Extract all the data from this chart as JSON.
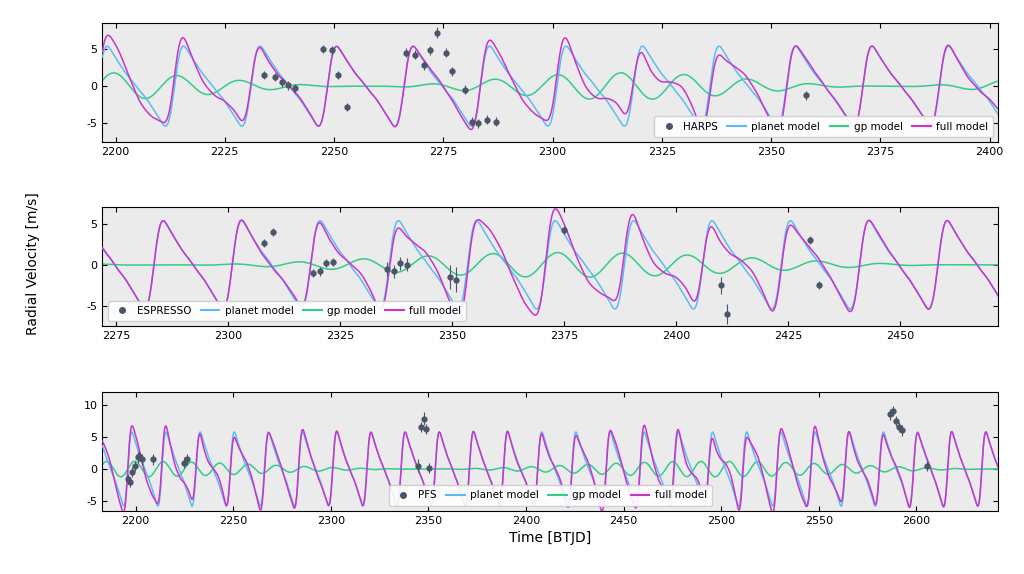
{
  "panel1": {
    "instrument": "HARPS",
    "xmin": 2197,
    "xmax": 2402,
    "ylim": [
      -7.5,
      8.5
    ],
    "yticks": [
      -5,
      0,
      5
    ],
    "xticks": [
      2200,
      2225,
      2250,
      2275,
      2300,
      2325,
      2350,
      2375,
      2400
    ],
    "data_x": [
      2234.0,
      2236.5,
      2238.0,
      2239.5,
      2241.0,
      2247.5,
      2249.5,
      2251.0,
      2253.0,
      2266.5,
      2268.5,
      2270.5,
      2272.0,
      2273.5,
      2275.5,
      2277.0,
      2280.0,
      2281.5,
      2283.0,
      2285.0,
      2287.0,
      2358.0
    ],
    "data_y": [
      1.5,
      1.2,
      0.5,
      0.1,
      -0.3,
      5.0,
      4.8,
      1.5,
      -2.8,
      4.5,
      4.2,
      2.8,
      4.8,
      7.2,
      4.5,
      2.0,
      -0.5,
      -4.8,
      -5.0,
      -4.5,
      -4.8,
      -1.2
    ],
    "data_yerr": [
      0.55,
      0.55,
      0.55,
      0.55,
      0.55,
      0.6,
      0.6,
      0.6,
      0.6,
      0.6,
      0.6,
      0.6,
      0.6,
      0.75,
      0.6,
      0.6,
      0.6,
      0.6,
      0.6,
      0.6,
      0.6,
      0.6
    ],
    "planet_amp": 4.2,
    "gp_amp": 1.8,
    "gp_slow_period": 120.0,
    "legend_loc": "lower right"
  },
  "panel2": {
    "instrument": "ESPRESSO",
    "xmin": 2272,
    "xmax": 2472,
    "ylim": [
      -7.5,
      7.0
    ],
    "yticks": [
      -5,
      0,
      5
    ],
    "xticks": [
      2275,
      2300,
      2325,
      2350,
      2375,
      2400,
      2425,
      2450
    ],
    "data_x": [
      2308.0,
      2310.0,
      2319.0,
      2320.5,
      2322.0,
      2323.5,
      2335.5,
      2337.0,
      2338.5,
      2340.0,
      2349.5,
      2351.0,
      2375.0,
      2410.0,
      2411.5,
      2430.0,
      2432.0
    ],
    "data_y": [
      2.7,
      4.0,
      -1.0,
      -0.8,
      0.2,
      0.3,
      -0.5,
      -0.8,
      0.2,
      0.0,
      -1.5,
      -1.8,
      4.2,
      -2.5,
      -6.0,
      3.0,
      -2.5
    ],
    "data_yerr": [
      0.5,
      0.5,
      0.5,
      0.5,
      0.5,
      0.5,
      0.8,
      0.8,
      0.8,
      0.8,
      1.5,
      1.5,
      0.5,
      1.0,
      1.2,
      0.5,
      0.5
    ],
    "planet_amp": 4.2,
    "gp_amp": 1.5,
    "gp_slow_period": 180.0,
    "legend_loc": "lower left"
  },
  "panel3": {
    "instrument": "PFS",
    "xmin": 2183,
    "xmax": 2642,
    "ylim": [
      -6.5,
      12.0
    ],
    "yticks": [
      -5,
      0,
      5,
      10
    ],
    "xticks": [
      2200,
      2250,
      2300,
      2350,
      2400,
      2450,
      2500,
      2550,
      2600
    ],
    "data_x": [
      2196.0,
      2197.0,
      2198.0,
      2199.5,
      2201.0,
      2202.0,
      2203.5,
      2209.0,
      2225.0,
      2226.5,
      2344.5,
      2346.0,
      2347.5,
      2349.0,
      2350.5,
      2586.5,
      2588.0,
      2589.5,
      2591.0,
      2592.5,
      2605.5
    ],
    "data_y": [
      -1.5,
      -2.0,
      -0.5,
      0.5,
      1.8,
      2.0,
      1.5,
      1.5,
      1.0,
      1.5,
      0.5,
      6.5,
      7.8,
      6.2,
      0.2,
      8.5,
      9.0,
      7.5,
      6.5,
      6.0,
      0.5
    ],
    "data_yerr": [
      0.8,
      0.8,
      0.8,
      0.8,
      0.8,
      0.8,
      0.8,
      0.8,
      0.8,
      0.8,
      1.0,
      0.8,
      1.0,
      0.8,
      0.8,
      0.8,
      0.8,
      0.8,
      0.8,
      0.8,
      0.8
    ],
    "planet_amp": 4.5,
    "gp_amp": 1.2,
    "gp_slow_period": 300.0,
    "legend_loc": "lower center"
  },
  "colors": {
    "planet_model": "#5bbcf0",
    "gp_model": "#33cc88",
    "full_model": "#cc33cc",
    "data_points": "#4a5568",
    "background": "#ebebeb"
  },
  "ylabel": "Radial Velocity [m/s]",
  "xlabel": "Time [BTJD]",
  "planet_period": 17.5,
  "stellar_rotation_period": 14.5,
  "t0_planet": 2196.0
}
